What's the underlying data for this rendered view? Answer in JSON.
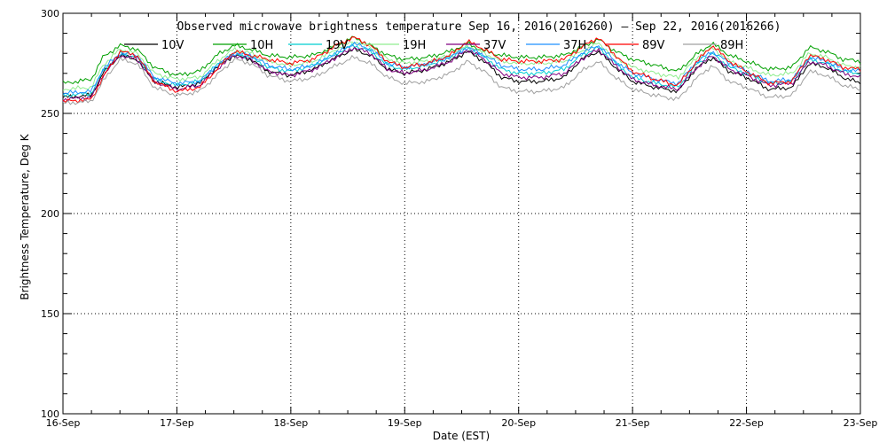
{
  "chart_data": {
    "type": "line",
    "title": "Observed microwave brightness temperature Sep 16, 2016(2016260) — Sep 22, 2016(2016266)",
    "xlabel": "Date (EST)",
    "ylabel": "Brightness Temperature, Deg K",
    "x_ticks": [
      "16-Sep",
      "17-Sep",
      "18-Sep",
      "19-Sep",
      "20-Sep",
      "21-Sep",
      "22-Sep",
      "23-Sep"
    ],
    "xlim_days": [
      0,
      7
    ],
    "ylim": [
      100,
      300
    ],
    "y_ticks": [
      100,
      150,
      200,
      250,
      300
    ],
    "grid": true,
    "legend_placement": "top",
    "x_days": [
      0.0,
      0.25,
      0.35,
      0.5,
      0.65,
      0.8,
      1.0,
      1.2,
      1.35,
      1.5,
      1.65,
      1.8,
      2.0,
      2.2,
      2.4,
      2.55,
      2.7,
      2.85,
      3.0,
      3.2,
      3.4,
      3.55,
      3.7,
      3.85,
      4.0,
      4.2,
      4.4,
      4.55,
      4.7,
      4.85,
      5.0,
      5.2,
      5.4,
      5.55,
      5.7,
      5.85,
      6.0,
      6.2,
      6.4,
      6.55,
      6.7,
      6.85,
      7.0
    ],
    "series": [
      {
        "name": "10V",
        "color": "#000000",
        "values": [
          258,
          259,
          270,
          279,
          277,
          266,
          263,
          265,
          273,
          279,
          277,
          271,
          269,
          272,
          278,
          282,
          279,
          272,
          270,
          272,
          276,
          281,
          276,
          268,
          266,
          266,
          268,
          277,
          281,
          273,
          266,
          263,
          261,
          272,
          278,
          271,
          268,
          262,
          263,
          275,
          273,
          268,
          265
        ]
      },
      {
        "name": "10H",
        "color": "#00a000",
        "values": [
          265,
          267,
          278,
          284,
          282,
          273,
          269,
          271,
          279,
          284,
          282,
          279,
          278,
          279,
          284,
          288,
          284,
          279,
          277,
          278,
          281,
          285,
          281,
          279,
          278,
          278,
          279,
          283,
          287,
          281,
          277,
          274,
          271,
          279,
          285,
          279,
          276,
          272,
          273,
          283,
          281,
          277,
          276
        ]
      },
      {
        "name": "19V",
        "color": "#00ced1",
        "values": [
          259,
          260,
          271,
          280,
          278,
          267,
          264,
          266,
          274,
          280,
          278,
          273,
          271,
          274,
          280,
          284,
          281,
          274,
          272,
          274,
          278,
          283,
          278,
          272,
          270,
          270,
          272,
          279,
          283,
          275,
          268,
          265,
          263,
          274,
          280,
          273,
          270,
          265,
          266,
          277,
          275,
          271,
          270
        ]
      },
      {
        "name": "19H",
        "color": "#90ee90",
        "values": [
          262,
          263,
          274,
          282,
          280,
          270,
          267,
          268,
          276,
          282,
          280,
          276,
          274,
          276,
          282,
          286,
          283,
          277,
          275,
          276,
          279,
          284,
          280,
          276,
          275,
          275,
          276,
          281,
          285,
          278,
          273,
          270,
          268,
          277,
          283,
          276,
          273,
          269,
          270,
          280,
          278,
          274,
          273
        ]
      },
      {
        "name": "37V",
        "color": "#800080",
        "values": [
          257,
          258,
          269,
          279,
          277,
          266,
          262,
          264,
          272,
          279,
          277,
          271,
          269,
          272,
          278,
          283,
          280,
          272,
          270,
          272,
          276,
          282,
          277,
          270,
          268,
          268,
          270,
          277,
          282,
          274,
          267,
          264,
          262,
          272,
          279,
          272,
          269,
          264,
          265,
          276,
          274,
          270,
          268
        ]
      },
      {
        "name": "37H",
        "color": "#1e90ff",
        "values": [
          260,
          261,
          272,
          280,
          279,
          268,
          265,
          266,
          274,
          280,
          279,
          274,
          272,
          274,
          280,
          285,
          282,
          275,
          273,
          275,
          278,
          283,
          279,
          274,
          272,
          272,
          274,
          280,
          284,
          276,
          270,
          267,
          265,
          275,
          281,
          275,
          271,
          266,
          267,
          278,
          276,
          272,
          271
        ]
      },
      {
        "name": "89V",
        "color": "#ff0000",
        "values": [
          256,
          257,
          268,
          281,
          279,
          266,
          261,
          263,
          272,
          281,
          279,
          277,
          275,
          277,
          284,
          288,
          284,
          276,
          273,
          275,
          279,
          286,
          282,
          277,
          276,
          276,
          277,
          283,
          288,
          279,
          271,
          267,
          264,
          275,
          284,
          276,
          271,
          265,
          266,
          279,
          277,
          273,
          272
        ]
      },
      {
        "name": "89H",
        "color": "#a0a0a0",
        "values": [
          255,
          256,
          266,
          277,
          275,
          263,
          259,
          261,
          269,
          277,
          275,
          269,
          266,
          268,
          274,
          278,
          275,
          268,
          265,
          266,
          270,
          276,
          271,
          263,
          261,
          261,
          263,
          271,
          276,
          268,
          262,
          259,
          257,
          267,
          274,
          266,
          263,
          258,
          259,
          271,
          269,
          264,
          262
        ]
      }
    ]
  }
}
